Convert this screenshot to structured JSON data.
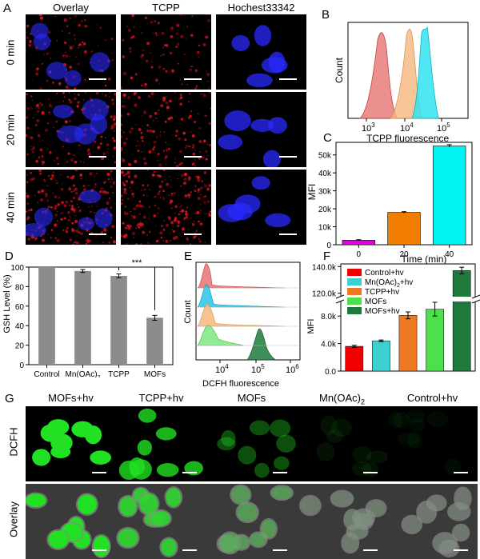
{
  "panel_labels": {
    "A": "A",
    "B": "B",
    "C": "C",
    "D": "D",
    "E": "E",
    "F": "F",
    "G": "G"
  },
  "panel_a": {
    "columns": [
      "Overlay",
      "TCPP",
      "Hochest33342"
    ],
    "rows": [
      "0 min",
      "20 min",
      "40 min"
    ],
    "colors": {
      "red": "#e0141e",
      "blue": "#2a2aff",
      "background": "#000000"
    }
  },
  "panel_b": {
    "xlabel": "TCPP fluorescence",
    "ylabel": "Count",
    "ticks": [
      "10",
      "3",
      "10",
      "4",
      "10",
      "5"
    ],
    "histogram_colors": [
      "#e46a6a",
      "#f5b77d",
      "#33e3f0"
    ]
  },
  "panel_c": {
    "ylabel": "MFI",
    "xlabel": "Time (min)",
    "yticks": [
      "0",
      "10k",
      "20k",
      "30k",
      "40k",
      "50k"
    ]
  },
  "panel_d": {
    "ylabel": "GSH Level (%)",
    "yticks": [
      "0",
      "20",
      "40",
      "60",
      "80",
      "100"
    ],
    "significance": "***"
  },
  "panel_e": {
    "ylabel": "Count",
    "xlabel": "DCFH  fluorescence",
    "ticks": [
      "10",
      "4",
      "10",
      "5",
      "10",
      "6"
    ],
    "histogram_colors": [
      "#e46a6a",
      "#27c5ea",
      "#f5b77d",
      "#7ee87e",
      "#1e7a3c"
    ]
  },
  "panel_f": {
    "ylabel": "MFI",
    "yticks": [
      "0.0",
      "4.0k",
      "8.0k",
      "120.0k",
      "140.0k"
    ],
    "legend": [
      "Control+hv",
      "Mn(OAc)",
      "2",
      "+hv",
      "TCPP+hv",
      "MOFs",
      "MOFs+hv"
    ]
  },
  "panel_g": {
    "columns": [
      "MOFs+hv",
      "TCPP+hv",
      "MOFs",
      "Mn(OAc)",
      "2",
      "Control+hv"
    ],
    "rows": [
      "DCFH",
      "Overlay"
    ]
  },
  "chart_data": [
    {
      "type": "bar",
      "panel": "C",
      "categories": [
        "0",
        "20",
        "40"
      ],
      "values": [
        2500,
        18000,
        55000
      ],
      "errors": [
        300,
        400,
        700
      ],
      "colors": [
        "#e000e0",
        "#f07c00",
        "#00f2f2"
      ],
      "ylabel": "MFI",
      "xlabel": "Time (min)",
      "ylim": [
        0,
        57000
      ]
    },
    {
      "type": "bar",
      "panel": "D",
      "categories": [
        "Control",
        "Mn(OAc)",
        "TCPP",
        "MOFs"
      ],
      "category_subscripts": [
        "",
        "2",
        "",
        ""
      ],
      "values": [
        100,
        96,
        91,
        48
      ],
      "errors": [
        0,
        1.5,
        2,
        2.5
      ],
      "color": "#8c8c8c",
      "ylabel": "GSH Level (%)",
      "ylim": [
        0,
        100
      ]
    },
    {
      "type": "bar",
      "panel": "F",
      "categories": [
        "Control+hv",
        "Mn(OAc)2+hv",
        "TCPP+hv",
        "MOFs",
        "MOFs+hv"
      ],
      "values": [
        3600,
        4400,
        8100,
        9000,
        137000
      ],
      "errors": [
        150,
        120,
        500,
        1000,
        2500
      ],
      "colors": [
        "#f00000",
        "#3cd0d0",
        "#f07820",
        "#4ce04c",
        "#1e7a3c"
      ],
      "ylabel": "MFI",
      "axis_break": [
        10000,
        118000
      ],
      "ylim": [
        0,
        142000
      ]
    }
  ]
}
